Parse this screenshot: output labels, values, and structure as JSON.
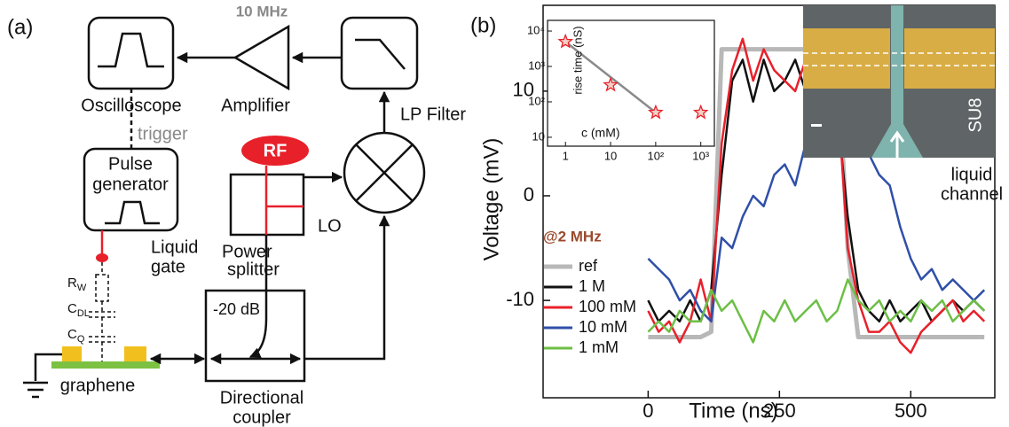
{
  "panel_a": {
    "label": "(a)",
    "frequency": "10 MHz",
    "oscilloscope": "Oscilloscope",
    "amplifier": "Amplifier",
    "lp_filter": "LP Filter",
    "trigger": "trigger",
    "rf": "RF",
    "pulse_generator": [
      "Pulse",
      "generator"
    ],
    "power_splitter": [
      "Power",
      "splitter"
    ],
    "lo": "LO",
    "liquid_gate": [
      "Liquid",
      "gate"
    ],
    "components": [
      {
        "text": "R",
        "sub": "W"
      },
      {
        "text": "C",
        "sub": "DL"
      },
      {
        "text": "C",
        "sub": "Q"
      }
    ],
    "attenuation": "-20 dB",
    "graphene": "graphene",
    "directional_coupler": [
      "Directional",
      "coupler"
    ]
  },
  "panel_b": {
    "label": "(b)",
    "annotation": "@2 MHz",
    "micrograph": {
      "material": "SU8",
      "channel": [
        "liquid",
        "channel"
      ]
    }
  },
  "chart_data": [
    {
      "type": "line",
      "x_label": "Time (ns)",
      "y_label": "Voltage (mV)",
      "x": [
        0,
        20,
        40,
        60,
        80,
        100,
        120,
        140,
        160,
        180,
        200,
        220,
        240,
        260,
        280,
        300,
        320,
        340,
        360,
        380,
        400,
        420,
        440,
        460,
        480,
        500,
        520,
        540,
        560,
        580,
        600,
        620,
        640
      ],
      "series": [
        {
          "name": "ref",
          "color": "#b8b8b8",
          "values": [
            -13.5,
            -13.5,
            -13.5,
            -13.5,
            -13.5,
            -13.5,
            -13,
            14,
            14,
            14,
            14,
            14,
            14,
            14,
            14,
            14,
            14,
            14,
            14,
            -5,
            -13.5,
            -13.5,
            -13.5,
            -13.5,
            -13.5,
            -13.5,
            -13.5,
            -13.5,
            -13.5,
            -13.5,
            -13.5,
            -13.5,
            -13.5
          ]
        },
        {
          "name": "1 M",
          "color": "#111111",
          "values": [
            -10,
            -12,
            -11,
            -12,
            -10,
            -12,
            -9,
            2,
            11,
            13,
            9,
            13,
            10,
            11,
            13,
            10,
            11,
            12,
            8,
            -2,
            -9,
            -11,
            -12,
            -10,
            -12,
            -11,
            -10,
            -12,
            -11,
            -10,
            -11,
            -10,
            -11
          ]
        },
        {
          "name": "100 mM",
          "color": "#e8202a",
          "values": [
            -11,
            -13,
            -12,
            -14,
            -12,
            -8,
            -12,
            5,
            12,
            15,
            11,
            14,
            12,
            11,
            10,
            13,
            10,
            9,
            10,
            -5,
            -10,
            -13,
            -13,
            -12,
            -14,
            -15,
            -13,
            -12,
            -11,
            -10,
            -12,
            -11,
            -12
          ]
        },
        {
          "name": "10 mM",
          "color": "#2f4fa8",
          "values": [
            -6,
            -7,
            -8,
            -10,
            -9,
            -11,
            -12,
            -4,
            -5,
            -2,
            0,
            -1,
            2,
            3,
            1,
            5,
            4,
            7,
            9,
            6,
            7,
            4,
            2,
            1,
            -3,
            -6,
            -8,
            -7,
            -9,
            -8,
            -9,
            -10,
            -9
          ]
        },
        {
          "name": "1 mM",
          "color": "#6cbf45",
          "values": [
            -13,
            -12,
            -13,
            -11,
            -12,
            -12,
            -9,
            -11,
            -10,
            -12,
            -14,
            -11,
            -12,
            -10,
            -12,
            -11,
            -10,
            -12,
            -11,
            -8,
            -10,
            -11,
            -10,
            -12,
            -11,
            -12,
            -10,
            -11,
            -10,
            -12,
            -11,
            -10,
            -11
          ]
        }
      ],
      "xlim": [
        -200,
        660
      ],
      "ylim": [
        -19.3,
        18.2
      ],
      "xticks": [
        0,
        250,
        500
      ],
      "yticks": [
        -10,
        0,
        10
      ],
      "legend": "lower left"
    },
    {
      "type": "scatter",
      "x_label": "c (mM)",
      "y_label": "rise time (nS)",
      "log_x": true,
      "log_y": true,
      "x": [
        1,
        10,
        100,
        1000
      ],
      "values": [
        5000,
        300,
        50,
        50
      ],
      "color": "#e8202a",
      "trend": {
        "x": [
          1,
          100
        ],
        "values": [
          5000,
          50
        ],
        "color": "#8a8a8a"
      },
      "xlim": [
        0.4,
        2000
      ],
      "ylim": [
        5.6,
        20000
      ],
      "xticks": [
        1,
        10,
        {
          "value": 100,
          "label": "10²"
        },
        {
          "value": 1000,
          "label": "10³"
        }
      ],
      "yticks": [
        10,
        {
          "value": 100,
          "label": "10²"
        },
        {
          "value": 1000,
          "label": "10³"
        },
        {
          "value": 10000,
          "label": "10⁴"
        }
      ]
    }
  ]
}
